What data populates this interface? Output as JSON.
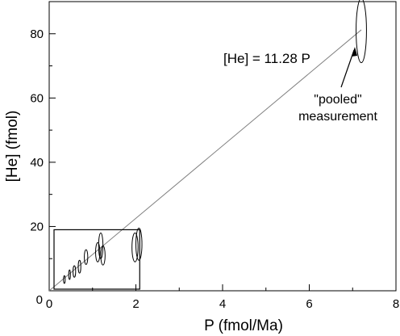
{
  "chart_data": {
    "type": "scatter",
    "title": "",
    "xlabel": "P (fmol/Ma)",
    "ylabel": "[He] (fmol)",
    "xlim": [
      0,
      8
    ],
    "ylim": [
      0,
      90
    ],
    "x_ticks": [
      0,
      2,
      4,
      6,
      8
    ],
    "y_ticks": [
      20,
      40,
      60,
      80
    ],
    "x_minor_ticks": [
      1,
      3,
      5,
      7
    ],
    "y_minor_ticks": [
      10,
      30,
      50,
      70
    ],
    "grid": false,
    "fit_line": {
      "label": "[He] = 11.28 P",
      "slope": 11.28,
      "x_range": [
        0,
        7.2
      ]
    },
    "points": [
      {
        "x": 0.35,
        "y": 3.5,
        "x_err": 0.02,
        "y_err": 1.2
      },
      {
        "x": 0.47,
        "y": 5.0,
        "x_err": 0.02,
        "y_err": 1.5
      },
      {
        "x": 0.58,
        "y": 6.0,
        "x_err": 0.03,
        "y_err": 1.8
      },
      {
        "x": 0.7,
        "y": 7.5,
        "x_err": 0.03,
        "y_err": 2.0
      },
      {
        "x": 0.85,
        "y": 10.5,
        "x_err": 0.04,
        "y_err": 2.3
      },
      {
        "x": 1.12,
        "y": 12.0,
        "x_err": 0.05,
        "y_err": 3.0
      },
      {
        "x": 1.19,
        "y": 14.0,
        "x_err": 0.05,
        "y_err": 4.0
      },
      {
        "x": 1.24,
        "y": 11.0,
        "x_err": 0.05,
        "y_err": 3.0
      },
      {
        "x": 1.98,
        "y": 13.5,
        "x_err": 0.07,
        "y_err": 4.5
      },
      {
        "x": 2.07,
        "y": 14.5,
        "x_err": 0.07,
        "y_err": 5.0
      }
    ],
    "pooled_point": {
      "x": 7.2,
      "y": 81,
      "x_err": 0.12,
      "y_err": 10
    },
    "annotation": {
      "line1": "\"pooled\"",
      "line2": "measurement"
    },
    "inset_box": {
      "x": [
        0,
        2.2
      ],
      "y": [
        0,
        19
      ]
    }
  }
}
